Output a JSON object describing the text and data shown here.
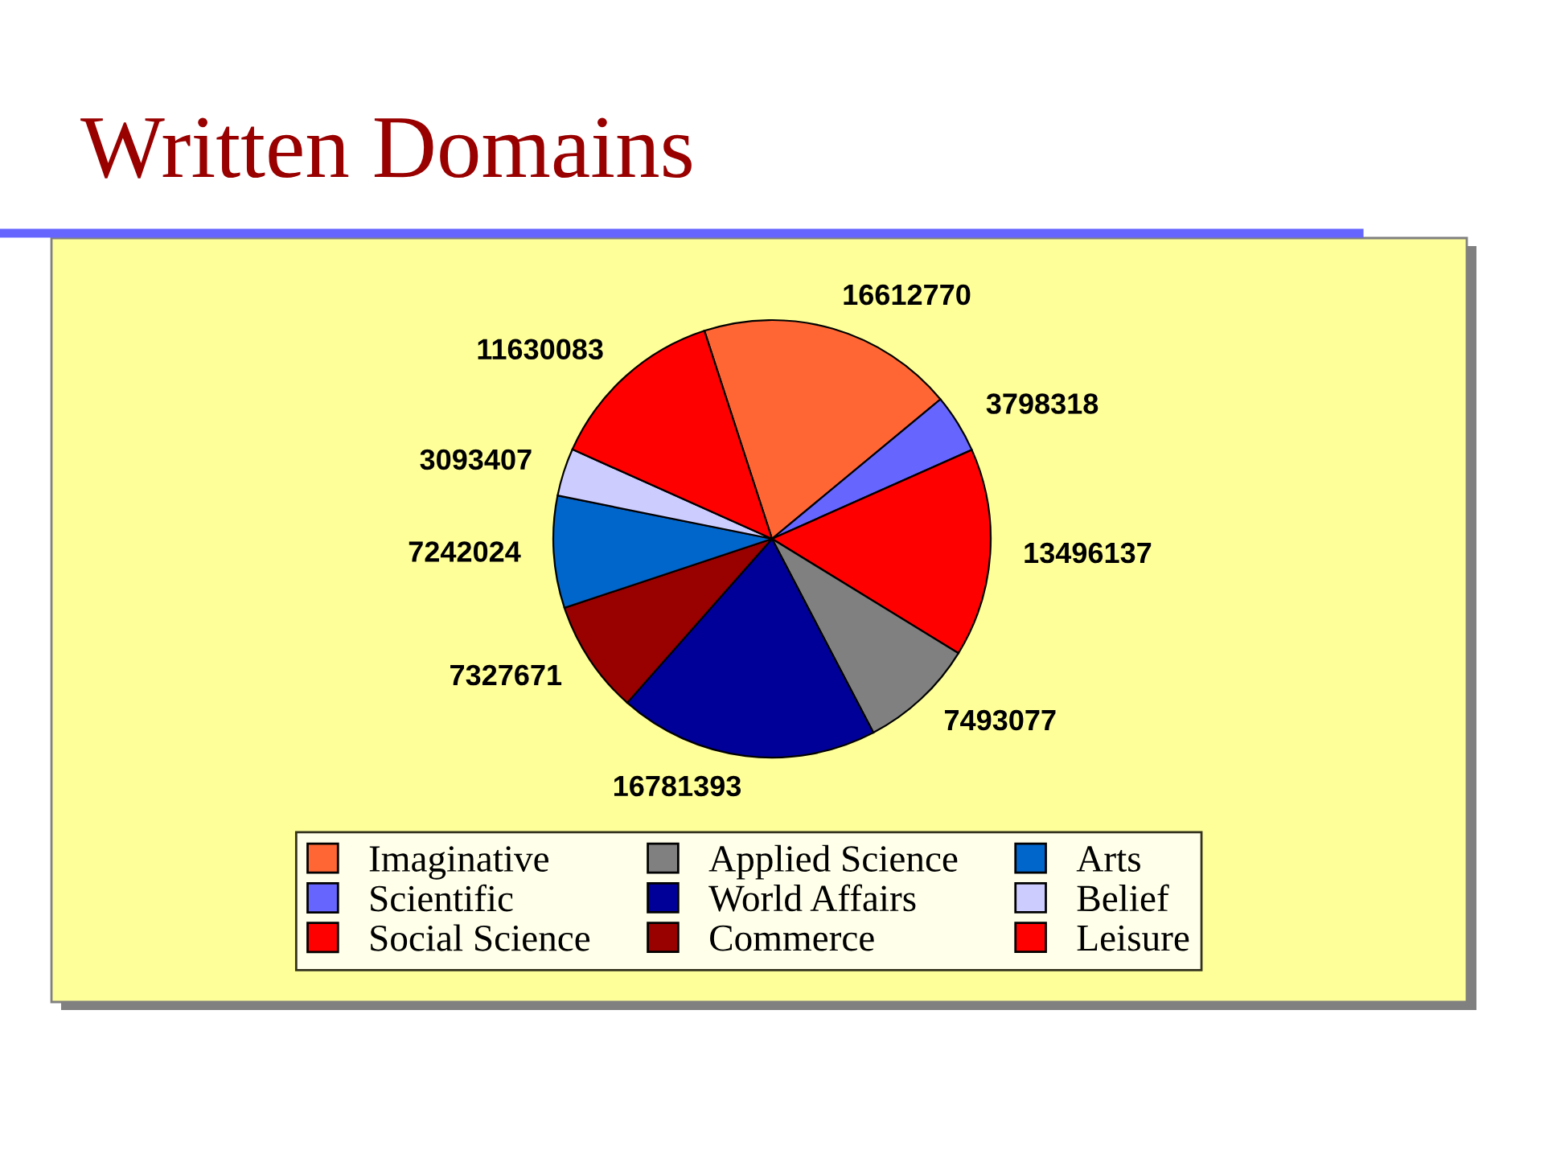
{
  "chart_data": {
    "type": "pie",
    "title": "Written Domains",
    "categories": [
      "Imaginative",
      "Scientific",
      "Social Science",
      "Applied Science",
      "World Affairs",
      "Commerce",
      "Arts",
      "Belief",
      "Leisure"
    ],
    "values": [
      16612770,
      3798318,
      13496137,
      7493077,
      16781393,
      7327671,
      7242024,
      3093407,
      11630083
    ],
    "colors": [
      "#ff6633",
      "#6666ff",
      "#ff0000",
      "#808080",
      "#000099",
      "#990000",
      "#0066cc",
      "#ccccff",
      "#ff0000"
    ],
    "data_labels": true,
    "legend": "bottom"
  }
}
